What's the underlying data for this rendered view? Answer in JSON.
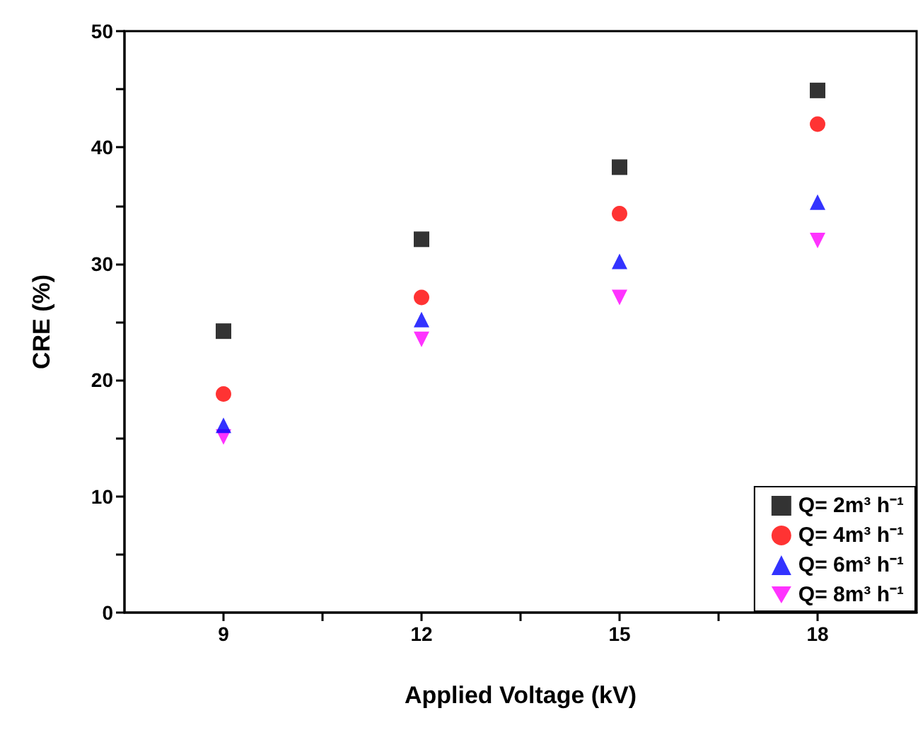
{
  "chart_data": {
    "type": "scatter",
    "xlabel": "Applied Voltage (kV)",
    "ylabel": "CRE (%)",
    "x": [
      9,
      12,
      15,
      18
    ],
    "series": [
      {
        "name": "Q= 2m³ h⁻¹",
        "color": "#000000",
        "marker": "square",
        "values": [
          24.2,
          32.1,
          38.3,
          44.9
        ]
      },
      {
        "name": "Q= 4m³ h⁻¹",
        "color": "#ff0000",
        "marker": "circle",
        "values": [
          18.8,
          27.1,
          34.3,
          42.0
        ]
      },
      {
        "name": "Q= 6m³ h⁻¹",
        "color": "#0000ff",
        "marker": "triangle",
        "values": [
          16.1,
          25.2,
          30.2,
          35.3
        ]
      },
      {
        "name": "Q= 8m³ h⁻¹",
        "color": "#ff00ff",
        "marker": "triangle-down",
        "values": [
          15.1,
          23.5,
          27.1,
          32.0
        ]
      }
    ],
    "xlim": [
      7.5,
      19.5
    ],
    "xticks": [
      9,
      {
        "value": 10.5,
        "label": null
      },
      12,
      {
        "value": 13.5,
        "label": null
      },
      15,
      {
        "value": 16.5,
        "label": null
      },
      18
    ],
    "ylim": [
      0,
      50
    ],
    "yticks": [
      0,
      {
        "value": 5,
        "label": null
      },
      10,
      {
        "value": 15,
        "label": null
      },
      20,
      {
        "value": 25,
        "label": null
      },
      30,
      {
        "value": 35,
        "label": null
      },
      40,
      {
        "value": 45,
        "label": null
      },
      50
    ],
    "grid": false,
    "legend": "bottom right"
  }
}
